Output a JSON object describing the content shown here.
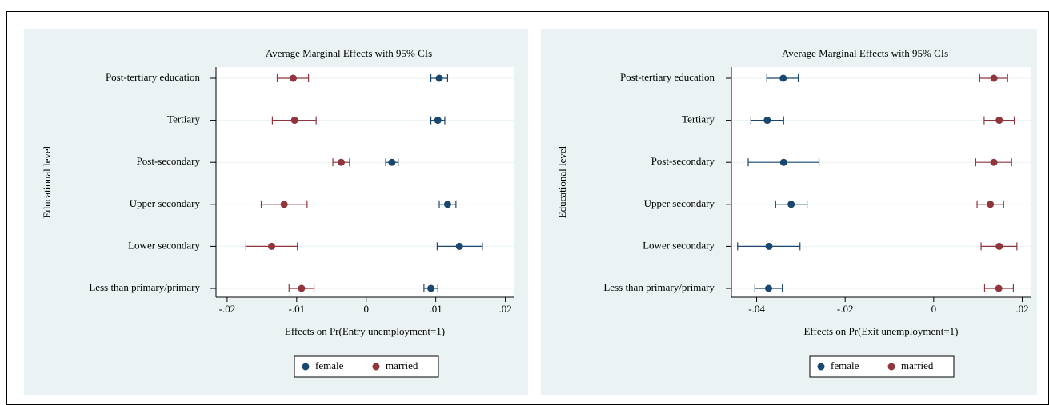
{
  "chart_data": [
    {
      "type": "dot-errorbar",
      "title": "Average Marginal Effects with 95% CIs",
      "xlabel": "Effects on Pr(Entry unemployment=1)",
      "ylabel": "Educational level",
      "categories": [
        "Post-tertiary education",
        "Tertiary",
        "Post-secondary",
        "Upper secondary",
        "Lower secondary",
        "Less than primary/primary"
      ],
      "xlim": [
        -0.0216,
        0.0212
      ],
      "xticks": [
        {
          "value": -0.02,
          "label": "-.02"
        },
        {
          "value": -0.01,
          "label": "-.01"
        },
        0,
        {
          "value": 0.01,
          "label": ".01"
        },
        {
          "value": 0.02,
          "label": ".02"
        }
      ],
      "grid": true,
      "series": [
        {
          "name": "female",
          "color": "#1a476f",
          "values": [
            0.0105,
            0.0103,
            0.0037,
            0.0117,
            0.0134,
            0.0093
          ],
          "ci_low": [
            0.0093,
            0.0093,
            0.0028,
            0.0105,
            0.0102,
            0.0083
          ],
          "ci_high": [
            0.0117,
            0.0113,
            0.0046,
            0.0129,
            0.0167,
            0.0103
          ]
        },
        {
          "name": "married",
          "color": "#90353b",
          "values": [
            -0.0105,
            -0.0103,
            -0.0036,
            -0.0118,
            -0.0136,
            -0.0093
          ],
          "ci_low": [
            -0.0128,
            -0.0135,
            -0.0048,
            -0.0151,
            -0.0173,
            -0.0111
          ],
          "ci_high": [
            -0.0083,
            -0.0072,
            -0.0024,
            -0.0085,
            -0.0099,
            -0.0075
          ]
        }
      ]
    },
    {
      "type": "dot-errorbar",
      "title": "Average Marginal Effects with 95% CIs",
      "xlabel": "Effects on Pr(Exit unemployment=1)",
      "ylabel": "Educational level",
      "categories": [
        "Post-tertiary education",
        "Tertiary",
        "Post-secondary",
        "Upper secondary",
        "Lower secondary",
        "Less than primary/primary"
      ],
      "xlim": [
        -0.0457,
        0.0219
      ],
      "xticks": [
        {
          "value": -0.04,
          "label": "-.04"
        },
        {
          "value": -0.02,
          "label": "-.02"
        },
        0,
        {
          "value": 0.02,
          "label": ".02"
        }
      ],
      "grid": true,
      "series": [
        {
          "name": "female",
          "color": "#1a476f",
          "values": [
            -0.034,
            -0.0376,
            -0.0339,
            -0.0322,
            -0.0372,
            -0.0373
          ],
          "ci_low": [
            -0.0377,
            -0.0413,
            -0.0419,
            -0.0357,
            -0.0443,
            -0.0404
          ],
          "ci_high": [
            -0.0306,
            -0.0339,
            -0.0259,
            -0.0286,
            -0.0302,
            -0.0342
          ]
        },
        {
          "name": "married",
          "color": "#90353b",
          "values": [
            0.0136,
            0.0148,
            0.0136,
            0.0128,
            0.0148,
            0.0147
          ],
          "ci_low": [
            0.0104,
            0.0114,
            0.0095,
            0.0098,
            0.0107,
            0.0115
          ],
          "ci_high": [
            0.0167,
            0.0182,
            0.0176,
            0.0158,
            0.0188,
            0.018
          ]
        }
      ]
    }
  ]
}
